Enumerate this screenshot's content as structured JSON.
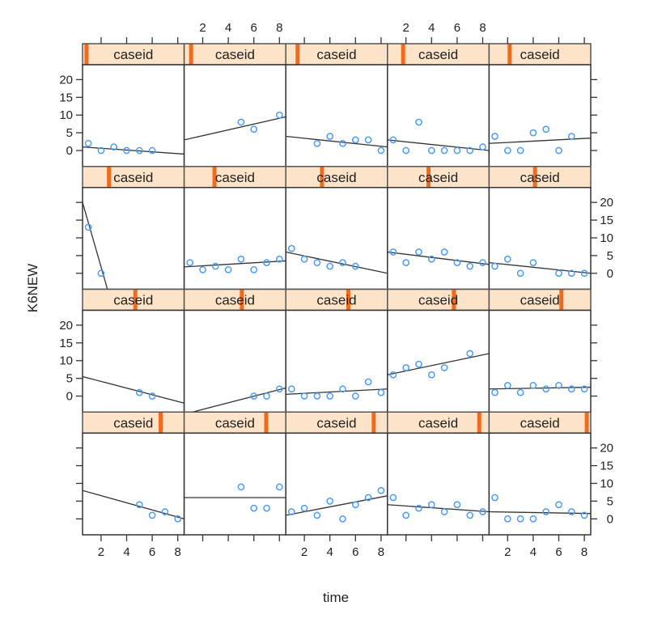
{
  "chart_data": {
    "type": "scatter",
    "xlabel": "time",
    "ylabel": "K6NEW",
    "strip_label": "caseid",
    "xlim": [
      0.55,
      8.5
    ],
    "ylim": [
      -4.5,
      24.2
    ],
    "x_ticks": [
      2,
      4,
      6,
      8
    ],
    "y_ticks": [
      0,
      5,
      10,
      15,
      20
    ],
    "grid": false,
    "layout": {
      "columns": 5,
      "rows": 4
    },
    "colors": {
      "points": "#4a9cf5",
      "line": "#333333",
      "strip_bg": "#fde3c8",
      "strip_marker": "#f26b1d"
    },
    "panels": [
      {
        "level": 0.02,
        "points": [
          [
            1,
            2
          ],
          [
            2,
            0
          ],
          [
            3,
            1
          ],
          [
            4,
            0
          ],
          [
            5,
            0
          ],
          [
            6,
            0
          ]
        ],
        "fit": [
          [
            0.55,
            1
          ],
          [
            8.5,
            -1
          ]
        ]
      },
      {
        "level": 0.05,
        "points": [
          [
            5,
            8
          ],
          [
            6,
            6
          ],
          [
            8,
            10
          ]
        ],
        "fit": [
          [
            0.55,
            3
          ],
          [
            8.5,
            9.5
          ]
        ]
      },
      {
        "level": 0.1,
        "points": [
          [
            3,
            2
          ],
          [
            4,
            4
          ],
          [
            5,
            2
          ],
          [
            6,
            3
          ],
          [
            7,
            3
          ],
          [
            8,
            0
          ]
        ],
        "fit": [
          [
            0.55,
            4
          ],
          [
            8.5,
            1
          ]
        ]
      },
      {
        "level": 0.14,
        "points": [
          [
            1,
            3
          ],
          [
            2,
            0
          ],
          [
            3,
            8
          ],
          [
            4,
            0
          ],
          [
            5,
            0
          ],
          [
            6,
            0
          ],
          [
            7,
            0
          ],
          [
            8,
            1
          ]
        ],
        "fit": [
          [
            0.55,
            3
          ],
          [
            8.5,
            0
          ]
        ]
      },
      {
        "level": 0.19,
        "points": [
          [
            1,
            4
          ],
          [
            2,
            0
          ],
          [
            3,
            0
          ],
          [
            4,
            5
          ],
          [
            5,
            6
          ],
          [
            6,
            0
          ],
          [
            7,
            4
          ]
        ],
        "fit": [
          [
            0.55,
            2
          ],
          [
            8.5,
            3.5
          ]
        ]
      },
      {
        "level": 0.25,
        "points": [
          [
            1,
            13
          ],
          [
            2,
            0
          ]
        ],
        "fit": [
          [
            0.55,
            20
          ],
          [
            2.5,
            -4.5
          ]
        ]
      },
      {
        "level": 0.29,
        "points": [
          [
            1,
            3
          ],
          [
            2,
            1
          ],
          [
            3,
            2
          ],
          [
            4,
            1
          ],
          [
            5,
            4
          ],
          [
            6,
            1
          ],
          [
            7,
            3
          ],
          [
            8,
            4
          ]
        ],
        "fit": [
          [
            0.55,
            1.8
          ],
          [
            8.5,
            3.5
          ]
        ]
      },
      {
        "level": 0.35,
        "points": [
          [
            1,
            7
          ],
          [
            2,
            4
          ],
          [
            3,
            3
          ],
          [
            4,
            2
          ],
          [
            5,
            3
          ],
          [
            6,
            2
          ]
        ],
        "fit": [
          [
            0.55,
            6
          ],
          [
            8.5,
            0
          ]
        ]
      },
      {
        "level": 0.4,
        "points": [
          [
            1,
            6
          ],
          [
            2,
            3
          ],
          [
            3,
            6
          ],
          [
            4,
            4
          ],
          [
            5,
            6
          ],
          [
            6,
            3
          ],
          [
            7,
            2
          ],
          [
            8,
            3
          ]
        ],
        "fit": [
          [
            0.55,
            6
          ],
          [
            8.5,
            2.5
          ]
        ]
      },
      {
        "level": 0.45,
        "points": [
          [
            1,
            2
          ],
          [
            2,
            4
          ],
          [
            3,
            0
          ],
          [
            4,
            3
          ],
          [
            6,
            0
          ],
          [
            7,
            0
          ],
          [
            8,
            0
          ]
        ],
        "fit": [
          [
            0.55,
            3
          ],
          [
            8.5,
            0
          ]
        ]
      },
      {
        "level": 0.52,
        "points": [
          [
            5,
            1
          ],
          [
            6,
            0
          ]
        ],
        "fit": [
          [
            0.55,
            5.5
          ],
          [
            8.5,
            -2
          ]
        ]
      },
      {
        "level": 0.57,
        "points": [
          [
            6,
            0
          ],
          [
            7,
            0
          ],
          [
            8,
            2
          ]
        ],
        "fit": [
          [
            1.2,
            -4.5
          ],
          [
            8.5,
            2.3
          ]
        ]
      },
      {
        "level": 0.62,
        "points": [
          [
            1,
            2
          ],
          [
            2,
            0
          ],
          [
            3,
            0
          ],
          [
            4,
            0
          ],
          [
            5,
            2
          ],
          [
            6,
            0
          ],
          [
            7,
            4
          ],
          [
            8,
            1
          ]
        ],
        "fit": [
          [
            0.55,
            0.5
          ],
          [
            8.5,
            2
          ]
        ]
      },
      {
        "level": 0.66,
        "points": [
          [
            1,
            6
          ],
          [
            2,
            8
          ],
          [
            3,
            9
          ],
          [
            4,
            6
          ],
          [
            5,
            8
          ],
          [
            7,
            12
          ]
        ],
        "fit": [
          [
            0.55,
            6
          ],
          [
            8.5,
            12
          ]
        ]
      },
      {
        "level": 0.72,
        "points": [
          [
            1,
            1
          ],
          [
            2,
            3
          ],
          [
            3,
            1
          ],
          [
            4,
            3
          ],
          [
            5,
            2
          ],
          [
            6,
            3
          ],
          [
            7,
            2
          ],
          [
            8,
            2
          ]
        ],
        "fit": [
          [
            0.55,
            2
          ],
          [
            8.5,
            2.5
          ]
        ]
      },
      {
        "level": 0.78,
        "points": [
          [
            5,
            4
          ],
          [
            6,
            1
          ],
          [
            7,
            2
          ],
          [
            8,
            0
          ]
        ],
        "fit": [
          [
            0.55,
            8
          ],
          [
            8.5,
            0
          ]
        ]
      },
      {
        "level": 0.82,
        "points": [
          [
            5,
            9
          ],
          [
            6,
            3
          ],
          [
            7,
            3
          ],
          [
            8,
            9
          ]
        ],
        "fit": [
          [
            0.55,
            6
          ],
          [
            8.5,
            6
          ]
        ]
      },
      {
        "level": 0.88,
        "points": [
          [
            1,
            2
          ],
          [
            2,
            3
          ],
          [
            3,
            1
          ],
          [
            4,
            5
          ],
          [
            5,
            0
          ],
          [
            6,
            4
          ],
          [
            7,
            6
          ],
          [
            8,
            8
          ]
        ],
        "fit": [
          [
            0.55,
            1
          ],
          [
            8.5,
            6.5
          ]
        ]
      },
      {
        "level": 0.92,
        "points": [
          [
            1,
            6
          ],
          [
            2,
            1
          ],
          [
            3,
            3
          ],
          [
            4,
            4
          ],
          [
            5,
            2
          ],
          [
            6,
            4
          ],
          [
            7,
            1
          ],
          [
            8,
            2
          ]
        ],
        "fit": [
          [
            0.55,
            4
          ],
          [
            8.5,
            2
          ]
        ]
      },
      {
        "level": 0.98,
        "points": [
          [
            1,
            6
          ],
          [
            2,
            0
          ],
          [
            3,
            0
          ],
          [
            4,
            0
          ],
          [
            5,
            2
          ],
          [
            6,
            4
          ],
          [
            7,
            2
          ],
          [
            8,
            1
          ]
        ],
        "fit": [
          [
            0.55,
            2
          ],
          [
            8.5,
            1.5
          ]
        ]
      }
    ]
  }
}
